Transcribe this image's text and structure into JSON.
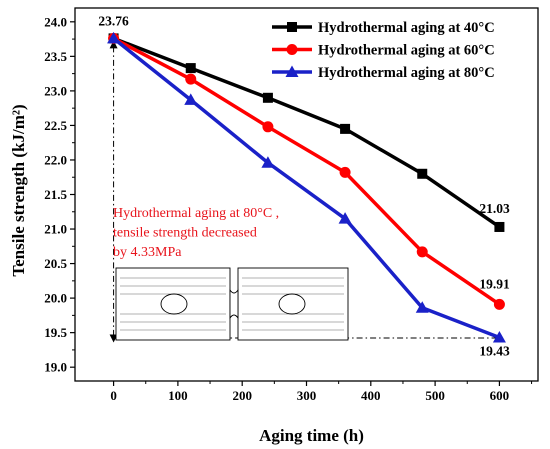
{
  "chart_data": {
    "type": "line",
    "xlabel": "Aging time (h)",
    "ylabel": "Tensile strength (kJ/m²)",
    "xlim": [
      -60,
      660
    ],
    "ylim": [
      18.8,
      24.2
    ],
    "xticks": [
      0,
      100,
      200,
      300,
      400,
      500,
      600
    ],
    "yticks": [
      19.0,
      19.5,
      20.0,
      20.5,
      21.0,
      21.5,
      22.0,
      22.5,
      23.0,
      23.5,
      24.0
    ],
    "legend_position": "top-right",
    "x": [
      0,
      120,
      240,
      360,
      480,
      600
    ],
    "series": [
      {
        "name": "Hydrothermal aging at 40°C",
        "color": "#000000",
        "marker": "square",
        "values": [
          23.76,
          23.33,
          22.9,
          22.45,
          21.8,
          21.03
        ]
      },
      {
        "name": "Hydrothermal aging at 60°C",
        "color": "#ff0000",
        "marker": "circle",
        "values": [
          23.76,
          23.17,
          22.48,
          21.82,
          20.67,
          19.91
        ]
      },
      {
        "name": "Hydrothermal aging at 80°C",
        "color": "#1a21c8",
        "marker": "triangle",
        "values": [
          23.76,
          22.87,
          21.96,
          21.15,
          19.86,
          19.43
        ]
      }
    ],
    "data_labels": [
      {
        "text": "23.76",
        "x": 0,
        "y": 23.76
      },
      {
        "text": "21.03",
        "x": 600,
        "y": 21.03
      },
      {
        "text": "19.91",
        "x": 600,
        "y": 19.91
      },
      {
        "text": "19.43",
        "x": 600,
        "y": 19.43
      }
    ],
    "annotation": {
      "lines": [
        "Hydrothermal aging at 80°C ,",
        "tensile strength decreased",
        "by 4.33MPa"
      ],
      "color": "#e8141c"
    }
  }
}
